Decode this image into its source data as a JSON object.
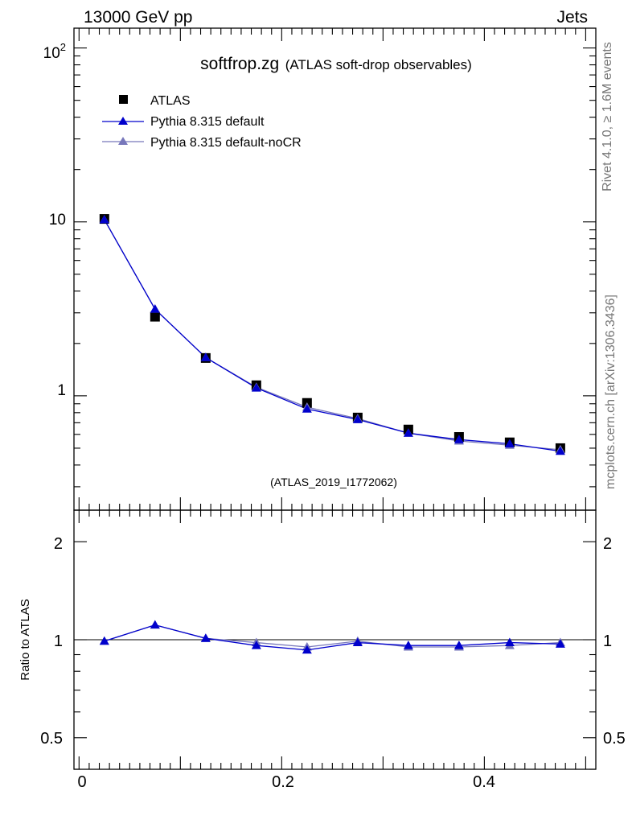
{
  "header": {
    "beam": "13000 GeV pp",
    "process": "Jets"
  },
  "side_labels": {
    "rivet": "Rivet 4.1.0, ≥ 1.6M events",
    "mcplots": "mcplots.cern.ch [arXiv:1306.3436]"
  },
  "title": {
    "main": "softfrop.zg",
    "sub": "(ATLAS soft-drop observables)"
  },
  "analysis_id": "(ATLAS_2019_I1772062)",
  "legend": [
    {
      "label": "ATLAS",
      "color": "#000000",
      "marker": "square"
    },
    {
      "label": "Pythia 8.315 default",
      "color": "#0000cc",
      "marker": "triangle"
    },
    {
      "label": "Pythia 8.315 default-noCR",
      "color": "#7777bb",
      "marker": "triangle"
    }
  ],
  "chart_data": {
    "type": "line",
    "x": [
      0.025,
      0.075,
      0.125,
      0.175,
      0.225,
      0.275,
      0.325,
      0.375,
      0.425,
      0.475
    ],
    "xlim": [
      -0.005,
      0.51
    ],
    "x_ticks": [
      "0",
      "0.2",
      "0.4"
    ],
    "x_tick_values": [
      0,
      0.2,
      0.4
    ],
    "main_panel": {
      "yscale": "log",
      "ylim": [
        0.22,
        130
      ],
      "y_tick_labels": [
        "1",
        "10"
      ],
      "y_tick_values": [
        1,
        10
      ],
      "y_tick_top_label": "10",
      "y_tick_top_exponent": "2",
      "y_tick_top_value": 100,
      "series": [
        {
          "name": "ATLAS",
          "values": [
            10.4,
            2.85,
            1.65,
            1.15,
            0.91,
            0.75,
            0.64,
            0.58,
            0.54,
            0.5
          ]
        },
        {
          "name": "Pythia 8.315 default",
          "values": [
            10.3,
            3.15,
            1.66,
            1.11,
            0.84,
            0.73,
            0.61,
            0.56,
            0.53,
            0.48
          ]
        },
        {
          "name": "Pythia 8.315 default-noCR",
          "values": [
            10.3,
            3.15,
            1.66,
            1.12,
            0.86,
            0.74,
            0.61,
            0.55,
            0.52,
            0.49
          ]
        }
      ]
    },
    "ratio_panel": {
      "ylabel": "Ratio to ATLAS",
      "yscale": "log",
      "ylim": [
        0.4,
        2.5
      ],
      "y_tick_labels": [
        "0.5",
        "1",
        "2"
      ],
      "y_tick_values": [
        0.5,
        1,
        2
      ],
      "series": [
        {
          "name": "Pythia 8.315 default",
          "values": [
            0.99,
            1.11,
            1.01,
            0.96,
            0.93,
            0.98,
            0.96,
            0.96,
            0.98,
            0.97
          ]
        },
        {
          "name": "Pythia 8.315 default-noCR",
          "values": [
            0.99,
            1.11,
            1.01,
            0.98,
            0.95,
            0.99,
            0.95,
            0.95,
            0.96,
            0.98
          ]
        }
      ]
    }
  }
}
